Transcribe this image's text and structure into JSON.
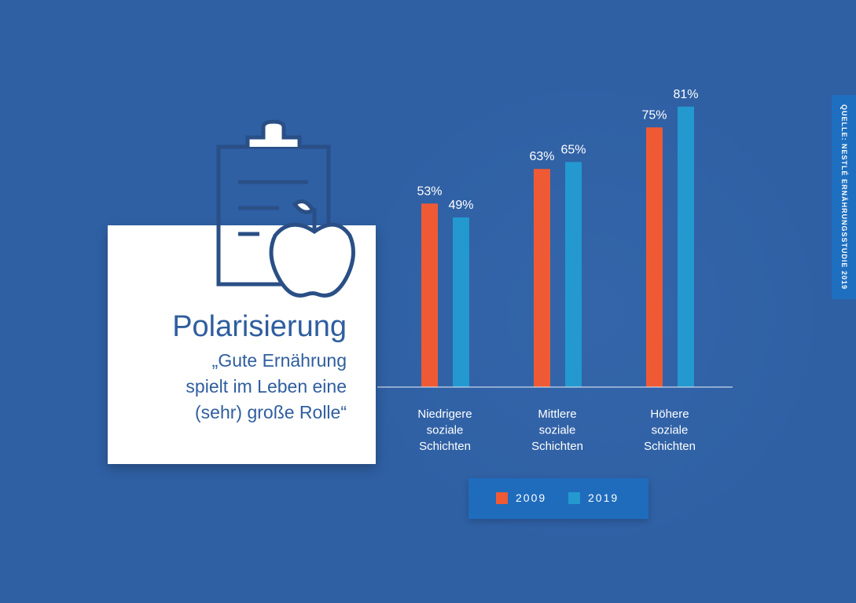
{
  "title": "Polarisierung",
  "subtitle": "„Gute Ernährung\nspielt im Leben eine\n(sehr) große Rolle“",
  "source": "QUELLE: NESTLÉ ERNÄHRUNGSSTUDIE 2019",
  "icons": [
    "clipboard-icon",
    "apple-icon"
  ],
  "colors": {
    "background": "#2f60a4",
    "series_2009": "#ef5a35",
    "series_2019": "#2399cf"
  },
  "chart_data": {
    "type": "bar",
    "categories": [
      "Niedrigere soziale Schichten",
      "Mittlere soziale Schichten",
      "Höhere soziale Schichten"
    ],
    "series": [
      {
        "name": "2009",
        "values": [
          53,
          63,
          75
        ],
        "labels": [
          "53%",
          "63%",
          "75%"
        ],
        "color": "#ef5a35"
      },
      {
        "name": "2019",
        "values": [
          49,
          65,
          81
        ],
        "labels": [
          "49%",
          "65%",
          "81%"
        ],
        "color": "#2399cf"
      }
    ],
    "ylim": [
      0,
      100
    ],
    "grid": false,
    "legend": "bottom"
  }
}
